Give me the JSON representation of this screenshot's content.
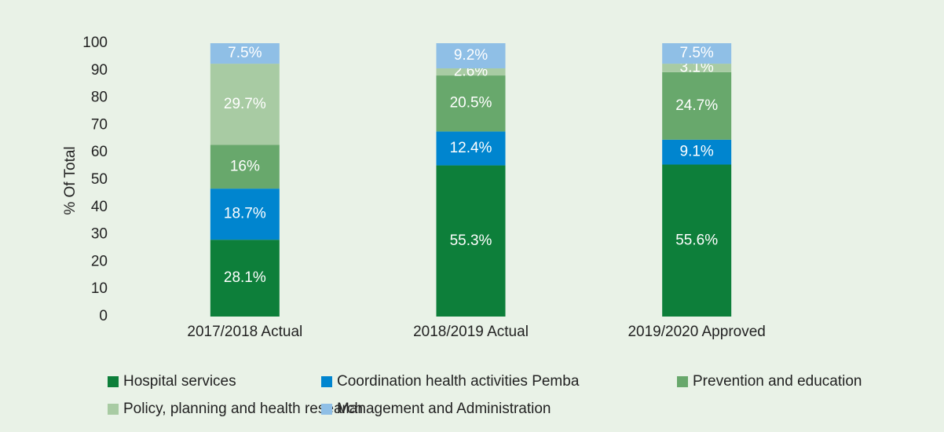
{
  "chart_data": {
    "type": "stacked_bar",
    "y_label": "% Of Total",
    "categories": [
      "2017/2018 Actual",
      "2018/2019 Actual",
      "2019/2020 Approved"
    ],
    "series": [
      {
        "name": "Hospital services",
        "color": "#0d7f3a",
        "values": [
          28.1,
          55.3,
          55.6
        ],
        "value_labels": [
          "28.1%",
          "55.3%",
          "55.6%"
        ]
      },
      {
        "name": "Coordination health activities Pemba",
        "color": "#0085cf",
        "values": [
          18.7,
          12.4,
          9.1
        ],
        "value_labels": [
          "18.7%",
          "12.4%",
          "9.1%"
        ]
      },
      {
        "name": "Prevention and education",
        "color": "#68a86c",
        "values": [
          16,
          20.5,
          24.7
        ],
        "value_labels": [
          "16%",
          "20.5%",
          "24.7%"
        ]
      },
      {
        "name": "Policy, planning and health research",
        "color": "#a8cba3",
        "values": [
          29.7,
          2.6,
          3.1
        ],
        "value_labels": [
          "29.7%",
          "2.6%",
          "3.1%"
        ]
      },
      {
        "name": "Management and Administration",
        "color": "#8fbfe6",
        "values": [
          7.5,
          9.2,
          7.5
        ],
        "value_labels": [
          "7.5%",
          "9.2%",
          "7.5%"
        ]
      }
    ],
    "ylim": [
      0,
      100
    ],
    "yticks": [
      0,
      10,
      20,
      30,
      40,
      50,
      60,
      70,
      80,
      90,
      100
    ],
    "grid": false
  }
}
